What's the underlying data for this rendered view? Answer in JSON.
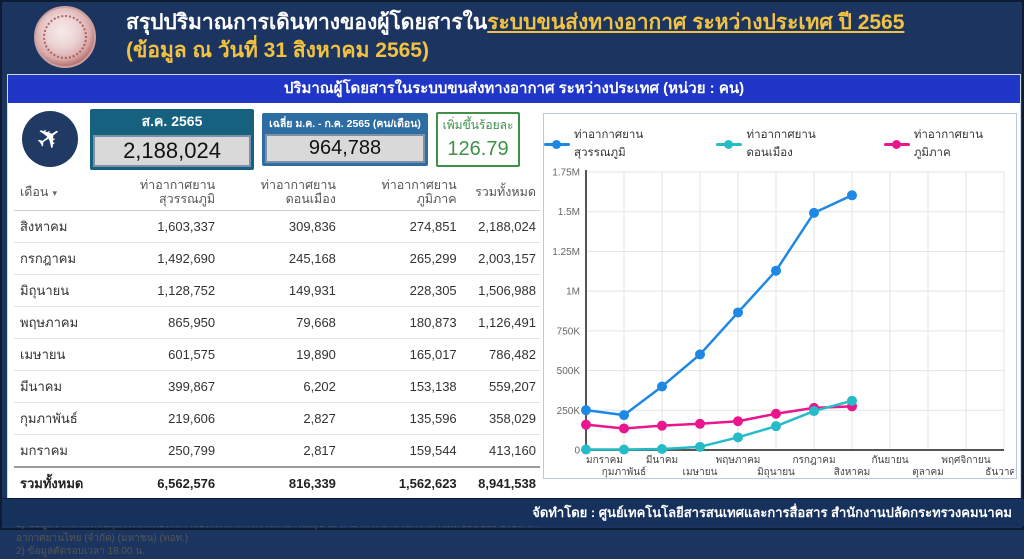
{
  "header": {
    "logo": "ministry-of-transport-seal",
    "title_prefix": "สรุปปริมาณการเดินทางของผู้โดยสารใน",
    "title_highlight": "ระบบขนส่งทางอากาศ ระหว่างประเทศ ปี 2565",
    "subtitle": "(ข้อมูล ณ วันที่ 31 สิงหาคม 2565)"
  },
  "panel_title": "ปริมาณผู้โดยสารในระบบขนส่งทางอากาศ ระหว่างประเทศ (หน่วย : คน)",
  "stats": {
    "icon": "airplane-icon",
    "boxes": [
      {
        "label": "ส.ค. 2565",
        "value": "2,188,024"
      },
      {
        "label": "เฉลี่ย ม.ค. - ก.ค. 2565 (คน/เดือน)",
        "value": "964,788"
      },
      {
        "label": "เพิ่มขึ้นร้อยละ",
        "value": "126.79"
      }
    ]
  },
  "table": {
    "sort_icon": "▾",
    "headers": [
      "เดือน",
      "ท่าอากาศยาน สุวรรณภูมิ",
      "ท่าอากาศยาน ดอนเมือง",
      "ท่าอากาศยาน ภูมิภาค",
      "รวมทั้งหมด"
    ],
    "rows": [
      [
        "สิงหาคม",
        "1,603,337",
        "309,836",
        "274,851",
        "2,188,024"
      ],
      [
        "กรกฎาคม",
        "1,492,690",
        "245,168",
        "265,299",
        "2,003,157"
      ],
      [
        "มิถุนายน",
        "1,128,752",
        "149,931",
        "228,305",
        "1,506,988"
      ],
      [
        "พฤษภาคม",
        "865,950",
        "79,668",
        "180,873",
        "1,126,491"
      ],
      [
        "เมษายน",
        "601,575",
        "19,890",
        "165,017",
        "786,482"
      ],
      [
        "มีนาคม",
        "399,867",
        "6,202",
        "153,138",
        "559,207"
      ],
      [
        "กุมภาพันธ์",
        "219,606",
        "2,827",
        "135,596",
        "358,029"
      ],
      [
        "มกราคม",
        "250,799",
        "2,817",
        "159,544",
        "413,160"
      ]
    ],
    "total_row": [
      "รวมทั้งหมด",
      "6,562,576",
      "816,339",
      "1,562,623",
      "8,941,538"
    ]
  },
  "notes": [
    "หมายเหตุ :",
    "1) ข้อมูลจากด่านควบคุมโรคติดต่อระหว่างประเทศ กระทรวงสาธารณสุข ณ ท่าอากาศยานในความรับผิดชอบของ บริษัท ท่าอากาศยานไทย (จำกัด) (มหาชน) (ทอท.)",
    "2) ข้อมูลตัดรอบเวลา 18.00 น."
  ],
  "chart_data": {
    "type": "line",
    "categories": [
      "มกราคม",
      "กุมภาพันธ์",
      "มีนาคม",
      "เมษายน",
      "พฤษภาคม",
      "มิถุนายน",
      "กรกฎาคม",
      "สิงหาคม",
      "กันยายน",
      "ตุลาคม",
      "พฤศจิกายน",
      "ธันวาคม"
    ],
    "series": [
      {
        "name": "ท่าอากาศยานสุวรรณภูมิ",
        "color": "#1e88e5",
        "values": [
          250799,
          219606,
          399867,
          601575,
          865950,
          1128752,
          1492690,
          1603337
        ]
      },
      {
        "name": "ท่าอากาศยานดอนเมือง",
        "color": "#26bcc7",
        "values": [
          2817,
          2827,
          6202,
          19890,
          79668,
          149931,
          245168,
          309836
        ]
      },
      {
        "name": "ท่าอากาศยานภูมิภาค",
        "color": "#ea168e",
        "values": [
          159544,
          135596,
          153138,
          165017,
          180873,
          228305,
          265299,
          274851
        ]
      }
    ],
    "ylim": [
      0,
      1750000
    ],
    "ytick_step": 250000,
    "ytick_labels": [
      "0",
      "250K",
      "500K",
      "750K",
      "1M",
      "1.25M",
      "1.5M",
      "1.75M"
    ],
    "grid": true,
    "legend_position": "top"
  },
  "footer": "จัดทำโดย : ศูนย์เทคโนโลยีสารสนเทศและการสื่อสาร สำนักงานปลัดกระทรวงคมนาคม",
  "colors": {
    "page_bg": "#1c3560",
    "title_bar": "#1f36c7",
    "gold": "#f2c240",
    "box_aug": "#16617f",
    "box_avg": "#2e6da4",
    "green": "#3f9049",
    "series_blue": "#1e88e5",
    "series_teal": "#26bcc7",
    "series_pink": "#ea168e"
  }
}
